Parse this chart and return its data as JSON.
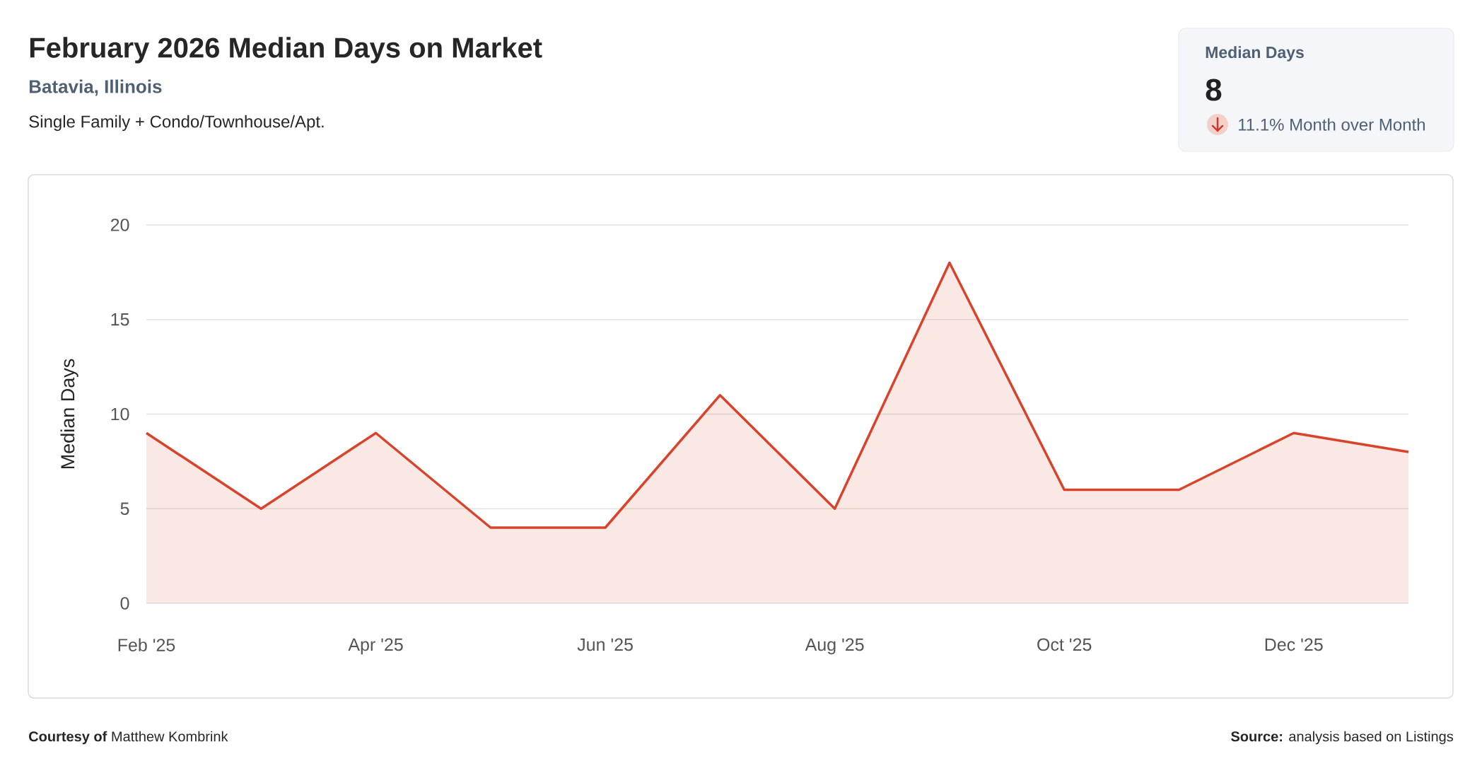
{
  "chart_data": [
    {
      "type": "area",
      "title": "February 2026 Median Days on Market",
      "subtitle": "Batavia, Illinois",
      "annotations": [
        "Single Family + Condo/Townhouse/Apt.",
        "**Courtesy of** Matthew Kombrink",
        "**Source:** analysis based on Listings"
      ],
      "ylabel": "Median Days",
      "categories": [
        "Feb '25",
        null,
        "Apr '25",
        null,
        "Jun '25",
        null,
        "Aug '25",
        null,
        "Oct '25",
        null,
        "Dec '25",
        null
      ],
      "series": [
        {
          "color": "#d9432b",
          "values": [
            9,
            5,
            9,
            4,
            4,
            11,
            5,
            18,
            6,
            6,
            9,
            8
          ]
        }
      ],
      "ylim": [
        0,
        20
      ],
      "yticks": [
        0,
        5,
        10,
        15,
        20
      ],
      "grid": "y"
    },
    {
      "type": "other",
      "title": "Median Days",
      "annotations": [
        "8",
        "11.1% Month over Month"
      ]
    }
  ]
}
